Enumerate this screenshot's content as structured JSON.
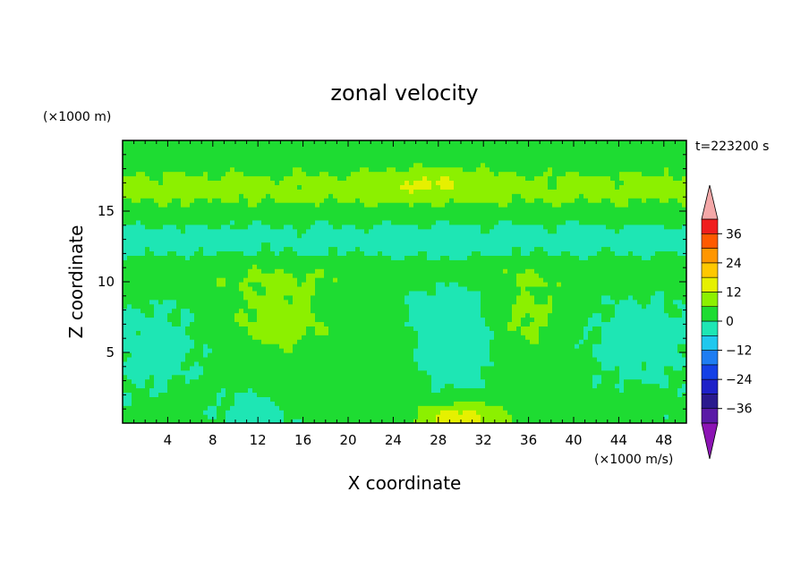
{
  "chart_data": {
    "type": "heatmap",
    "title": "zonal velocity",
    "xlabel": "X coordinate",
    "ylabel": "Z coordinate",
    "x_unit": "(×1000 m/s)",
    "y_unit": "(×1000 m)",
    "time_label": "t=223200 s",
    "xlim": [
      0,
      50
    ],
    "ylim": [
      0,
      20
    ],
    "x_ticks": [
      4,
      8,
      12,
      16,
      20,
      24,
      28,
      32,
      36,
      40,
      44,
      48
    ],
    "y_ticks": [
      5,
      10,
      15
    ],
    "colorbar": {
      "labels": [
        36,
        24,
        12,
        0,
        -12,
        -24,
        -36
      ],
      "bins": [
        {
          "lo": -42,
          "hi": -36,
          "color": "#5a1aa6"
        },
        {
          "lo": -36,
          "hi": -30,
          "color": "#2a1a8e"
        },
        {
          "lo": -30,
          "hi": -24,
          "color": "#1e22c8"
        },
        {
          "lo": -24,
          "hi": -18,
          "color": "#1440e6"
        },
        {
          "lo": -18,
          "hi": -12,
          "color": "#1e7df2"
        },
        {
          "lo": -12,
          "hi": -6,
          "color": "#20c8ee"
        },
        {
          "lo": -6,
          "hi": 0,
          "color": "#1ee6b4"
        },
        {
          "lo": 0,
          "hi": 6,
          "color": "#1edc32"
        },
        {
          "lo": 6,
          "hi": 12,
          "color": "#8cf000"
        },
        {
          "lo": 12,
          "hi": 18,
          "color": "#e6f000"
        },
        {
          "lo": 18,
          "hi": 24,
          "color": "#ffc800"
        },
        {
          "lo": 24,
          "hi": 30,
          "color": "#ff9600"
        },
        {
          "lo": 30,
          "hi": 36,
          "color": "#ff5a00"
        },
        {
          "lo": 36,
          "hi": 42,
          "color": "#f01e1e"
        }
      ],
      "over_color": "#f4a8a8",
      "under_color": "#8c14b4"
    },
    "grid": false,
    "legend": "right"
  }
}
